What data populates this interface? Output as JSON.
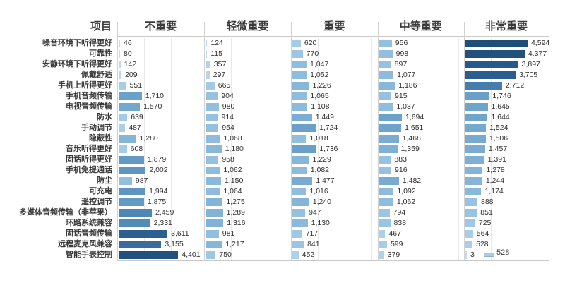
{
  "chart_data": {
    "type": "bar",
    "orientation": "horizontal",
    "title": "",
    "item_header": "项目",
    "categories": [
      "噪音环境下听得更好",
      "可靠性",
      "安静环境下听得更好",
      "佩戴舒适",
      "手机上听得更好",
      "手机音频传输",
      "电视音频传输",
      "防水",
      "手动调节",
      "隐蔽性",
      "音乐听得更好",
      "固话听得更好",
      "手机免提通话",
      "防尘",
      "可充电",
      "遥控调节",
      "多媒体音频传输（非苹果）",
      "环路系统兼容",
      "固话音频传输",
      "远程麦克风兼容",
      "智能手表控制"
    ],
    "series": [
      {
        "name": "不重要",
        "values": [
          46,
          80,
          142,
          209,
          551,
          1710,
          1570,
          639,
          487,
          1280,
          608,
          1879,
          2002,
          987,
          1994,
          1875,
          2459,
          2331,
          3611,
          3155,
          4401
        ]
      },
      {
        "name": "轻微重要",
        "values": [
          124,
          115,
          357,
          297,
          665,
          904,
          980,
          914,
          954,
          1068,
          1180,
          958,
          1062,
          1150,
          1064,
          1275,
          1289,
          1316,
          981,
          1217,
          750
        ]
      },
      {
        "name": "重要",
        "values": [
          620,
          770,
          1047,
          1052,
          1226,
          1065,
          1108,
          1449,
          1724,
          1018,
          1736,
          1229,
          1082,
          1477,
          1016,
          1240,
          947,
          1130,
          717,
          841,
          452
        ]
      },
      {
        "name": "中等重要",
        "values": [
          956,
          998,
          897,
          1077,
          1186,
          915,
          1037,
          1694,
          1651,
          1468,
          1359,
          883,
          916,
          1482,
          1092,
          1062,
          794,
          838,
          467,
          599,
          379
        ]
      },
      {
        "name": "非常重要",
        "values": [
          4594,
          4377,
          3897,
          3705,
          2712,
          1746,
          1645,
          1644,
          1524,
          1506,
          1457,
          1391,
          1278,
          1244,
          1174,
          888,
          851,
          725,
          564,
          528,
          3
        ]
      }
    ],
    "xlim": [
      0,
      6000
    ],
    "gridline_interval": 2000,
    "grid": true,
    "value_labels": true,
    "legend": "none",
    "color_scale": {
      "domain_max": 4594,
      "stops": [
        [
          0.0,
          "#C7DCEE"
        ],
        [
          0.13,
          "#A6CCE6"
        ],
        [
          0.22,
          "#92BEDD"
        ],
        [
          0.3,
          "#7FB0D4"
        ],
        [
          0.38,
          "#699FC8"
        ],
        [
          0.45,
          "#5B92BF"
        ],
        [
          0.55,
          "#4C84B2"
        ],
        [
          0.7,
          "#38699A"
        ],
        [
          0.85,
          "#27588A"
        ],
        [
          1.0,
          "#1F4E79"
        ]
      ]
    }
  },
  "floating_label": {
    "value_display": "528",
    "swatch_color": "#A8CCE6"
  }
}
